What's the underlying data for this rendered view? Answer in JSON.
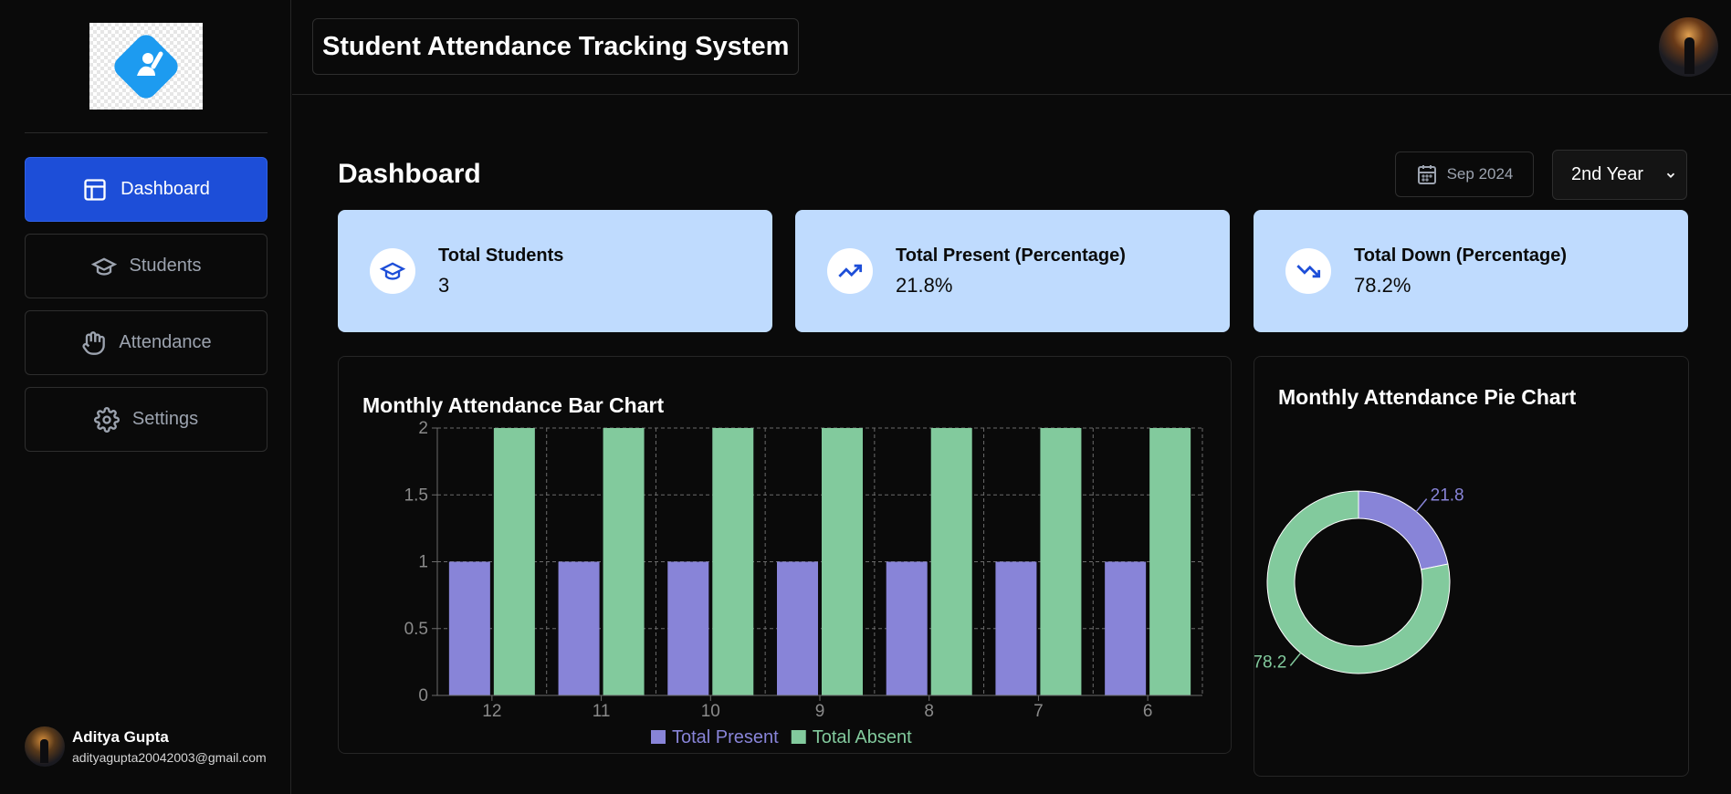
{
  "sidebar": {
    "items": [
      {
        "label": "Dashboard",
        "icon": "layout-icon",
        "active": true
      },
      {
        "label": "Students",
        "icon": "graduation-cap-icon"
      },
      {
        "label": "Attendance",
        "icon": "hand-icon"
      },
      {
        "label": "Settings",
        "icon": "gear-icon"
      }
    ],
    "user": {
      "name": "Aditya Gupta",
      "email": "adityagupta20042003@gmail.com"
    }
  },
  "header": {
    "title": "Student Attendance Tracking System"
  },
  "main": {
    "title": "Dashboard",
    "month_picker": {
      "label": "Sep 2024",
      "icon": "calendar-icon"
    },
    "grade_select": {
      "value": "2nd Year"
    },
    "stats": [
      {
        "label": "Total Students",
        "value": "3",
        "icon": "graduation-cap-icon"
      },
      {
        "label": "Total Present (Percentage)",
        "value": "21.8%",
        "icon": "trending-up-icon"
      },
      {
        "label": "Total Down (Percentage)",
        "value": "78.2%",
        "icon": "trending-down-icon"
      }
    ]
  },
  "colors": {
    "present": "#8884d8",
    "absent": "#82ca9d",
    "accent": "#1d4ed8",
    "card": "#bfdbfe"
  },
  "chart_data": [
    {
      "type": "bar",
      "title": "Monthly Attendance Bar Chart",
      "categories": [
        "12",
        "11",
        "10",
        "9",
        "8",
        "7",
        "6"
      ],
      "series": [
        {
          "name": "Total Present",
          "values": [
            1,
            1,
            1,
            1,
            1,
            1,
            1
          ]
        },
        {
          "name": "Total Absent",
          "values": [
            2,
            2,
            2,
            2,
            2,
            2,
            2
          ]
        }
      ],
      "ylim": [
        0,
        2
      ],
      "yticks": [
        "0",
        "0.5",
        "1",
        "1.5",
        "2"
      ],
      "grid": true,
      "legend": "bottom"
    },
    {
      "type": "pie",
      "title": "Monthly Attendance Pie Chart",
      "slices": [
        {
          "value": 21.8,
          "label": "21.8"
        },
        {
          "value": 78.2,
          "label": "78.2"
        }
      ]
    }
  ]
}
